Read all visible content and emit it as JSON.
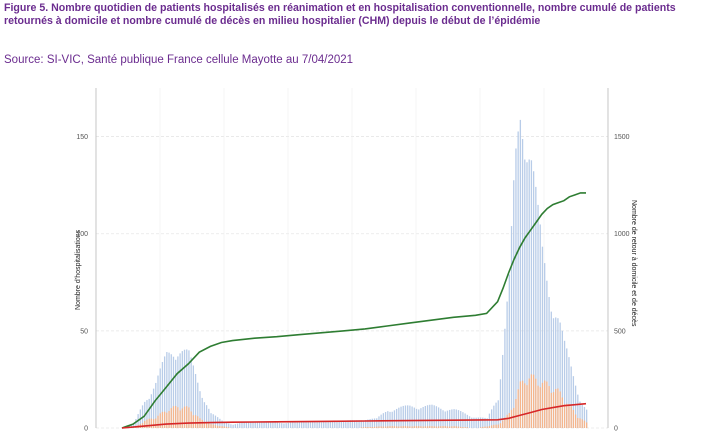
{
  "figure": {
    "caption": "Figure 5.  Nombre quotidien de patients hospitalisés en réanimation et en hospitalisation conventionnelle, nombre cumulé de patients retournés à domicile et nombre cumulé de décès en milieu hospitalier (CHM) depuis le début de l’épidémie",
    "source": "Source: SI-VIC, Santé publique France cellule Mayotte au 7/04/2021"
  },
  "chart_data": {
    "type": "bar",
    "ylabel": "Nombre d’hospitalisations",
    "ylabel_right": "Nombre de retour à domicile et de décès",
    "ylim": [
      0,
      175
    ],
    "yticks": [
      0,
      50,
      100,
      150
    ],
    "ylim_right": [
      0,
      1750
    ],
    "yticks_right": [
      0,
      500,
      1000,
      1500
    ],
    "grid": true,
    "colors": {
      "hospitalisation": "#b8cce8",
      "reanimation": "#f5b58c",
      "retour_domicile": "#2e7d32",
      "deces": "#d62728"
    },
    "series": [
      {
        "key": "hospitalisation",
        "kind": "bar",
        "axis": "left",
        "x": [
          0,
          10,
          20,
          30,
          40,
          50,
          60,
          70,
          80,
          90,
          100,
          110,
          120,
          130,
          140,
          150,
          160,
          170,
          180,
          190,
          200,
          210,
          220,
          230,
          240,
          250,
          260,
          270,
          280,
          290,
          300,
          310,
          320,
          330,
          340,
          350,
          355,
          360,
          365,
          370,
          375,
          380,
          385,
          390,
          395,
          400,
          405,
          410,
          415,
          420
        ],
        "values": [
          0,
          2,
          15,
          25,
          40,
          45,
          40,
          22,
          8,
          4,
          2,
          3,
          4,
          3,
          3,
          3,
          3,
          4,
          3,
          4,
          4,
          4,
          5,
          5,
          10,
          11,
          12,
          12,
          12,
          11,
          10,
          8,
          6,
          5,
          18,
          80,
          140,
          175,
          172,
          150,
          120,
          95,
          80,
          70,
          60,
          45,
          35,
          25,
          15,
          10
        ]
      },
      {
        "key": "reanimation",
        "kind": "bar",
        "axis": "left",
        "x": [
          0,
          10,
          20,
          30,
          40,
          50,
          60,
          70,
          80,
          90,
          100,
          150,
          200,
          240,
          260,
          280,
          300,
          320,
          340,
          350,
          355,
          360,
          365,
          370,
          375,
          380,
          385,
          390,
          395,
          400,
          405,
          410,
          415,
          420
        ],
        "values": [
          0,
          0,
          4,
          6,
          10,
          12,
          11,
          5,
          2,
          1,
          0,
          0,
          0,
          1,
          1,
          1,
          1,
          0,
          2,
          8,
          15,
          24,
          28,
          28,
          27,
          25,
          24,
          22,
          20,
          16,
          12,
          8,
          5,
          3
        ]
      },
      {
        "key": "retour_domicile",
        "kind": "line",
        "axis": "right",
        "x": [
          0,
          10,
          20,
          30,
          40,
          50,
          60,
          70,
          80,
          90,
          100,
          120,
          140,
          160,
          180,
          200,
          220,
          240,
          260,
          280,
          300,
          320,
          330,
          340,
          345,
          350,
          355,
          360,
          365,
          370,
          375,
          380,
          385,
          390,
          395,
          400,
          405,
          410,
          415,
          420
        ],
        "values": [
          0,
          20,
          60,
          140,
          210,
          280,
          330,
          390,
          420,
          440,
          450,
          462,
          470,
          480,
          490,
          500,
          510,
          525,
          540,
          555,
          570,
          580,
          590,
          650,
          720,
          800,
          870,
          930,
          980,
          1020,
          1060,
          1100,
          1130,
          1150,
          1160,
          1170,
          1190,
          1200,
          1210,
          1210
        ]
      },
      {
        "key": "deces",
        "kind": "line",
        "axis": "right",
        "x": [
          0,
          20,
          40,
          60,
          80,
          100,
          140,
          180,
          220,
          260,
          300,
          340,
          350,
          360,
          370,
          380,
          390,
          400,
          410,
          420
        ],
        "values": [
          0,
          10,
          20,
          25,
          28,
          30,
          32,
          34,
          36,
          38,
          40,
          42,
          50,
          65,
          80,
          95,
          105,
          115,
          120,
          125
        ]
      }
    ]
  }
}
